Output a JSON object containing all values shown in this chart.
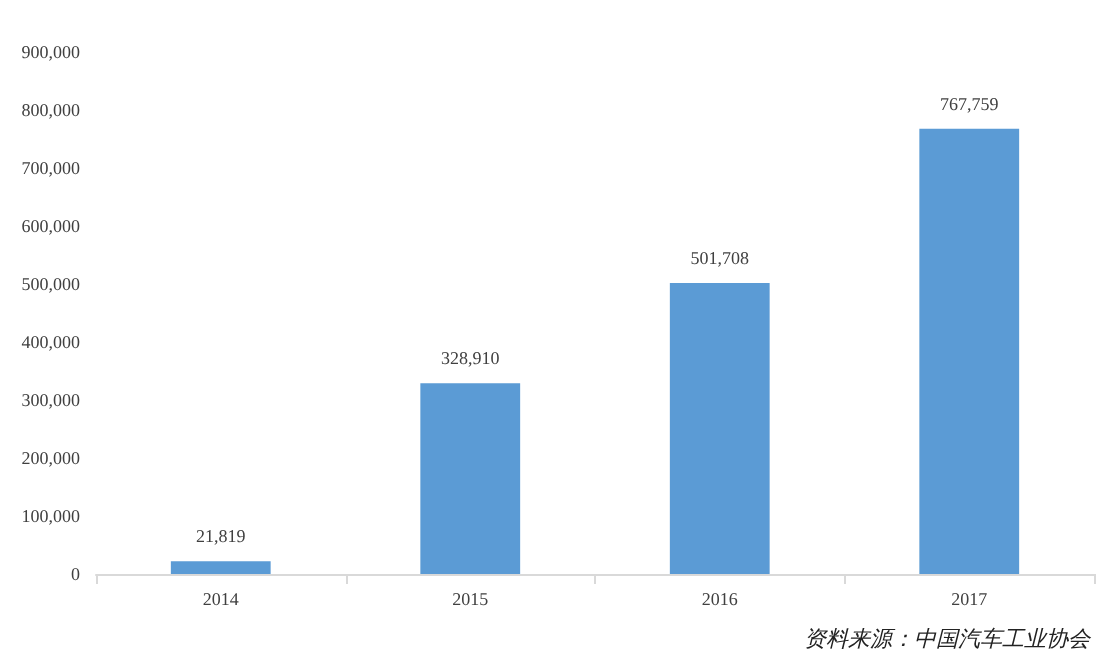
{
  "chart_data": {
    "type": "bar",
    "categories": [
      "2014",
      "2015",
      "2016",
      "2017"
    ],
    "values": [
      21819,
      328910,
      501708,
      767759
    ],
    "color": "#5b9bd5",
    "value_labels": [
      "21,819",
      "328,910",
      "501,708",
      "767,759"
    ],
    "ylim": [
      0,
      900000
    ],
    "yticks": [
      0,
      {
        "value": 100000,
        "label": "100,000"
      },
      {
        "value": 200000,
        "label": "200,000"
      },
      {
        "value": 300000,
        "label": "300,000"
      },
      {
        "value": 400000,
        "label": "400,000"
      },
      {
        "value": 500000,
        "label": "500,000"
      },
      {
        "value": 600000,
        "label": "600,000"
      },
      {
        "value": 700000,
        "label": "700,000"
      },
      {
        "value": 800000,
        "label": "800,000"
      },
      {
        "value": 900000,
        "label": "900,000"
      }
    ],
    "grid": false,
    "annotations": [
      "资料来源：中国汽车工业协会"
    ]
  }
}
